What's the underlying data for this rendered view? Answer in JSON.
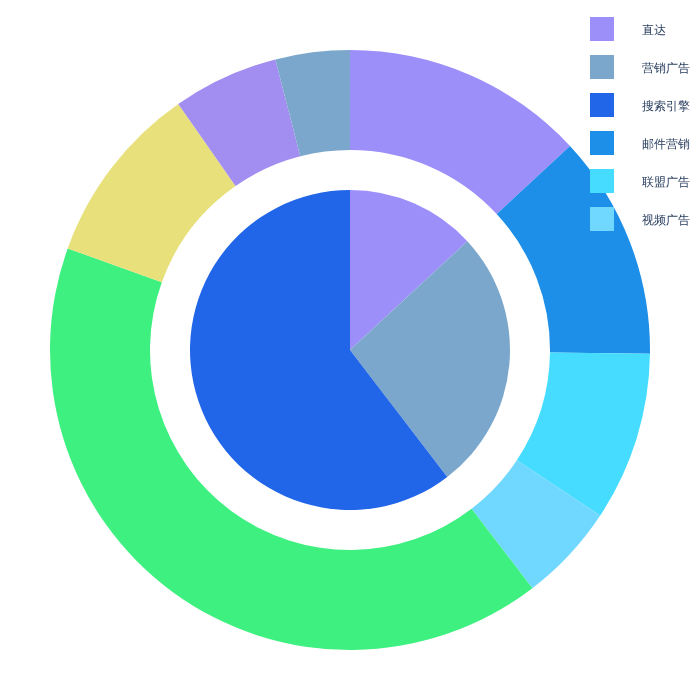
{
  "chart_data": {
    "type": "pie",
    "legend": "top right",
    "categories": [
      "直达",
      "营销广告",
      "搜索引擎",
      "邮件营销",
      "联盟广告",
      "视频广告",
      null,
      null,
      null,
      null
    ],
    "colors": [
      "#9d8ffa",
      "#7ba7cc",
      "#2165e8",
      "#1e8fe8",
      "#45dcff",
      "#70d8ff",
      "#3ef07f",
      "#e8e07a",
      "#a28ef0",
      "#7ba7cc"
    ],
    "series": [
      {
        "values": [
          13.1,
          26.5,
          60.4,
          null,
          null,
          null,
          null,
          null,
          null,
          null
        ]
      },
      {
        "type": "donut",
        "values": [
          13.1,
          null,
          null,
          12.1,
          9.1,
          5.3,
          40.9,
          9.8,
          5.7,
          4.0
        ]
      }
    ]
  }
}
